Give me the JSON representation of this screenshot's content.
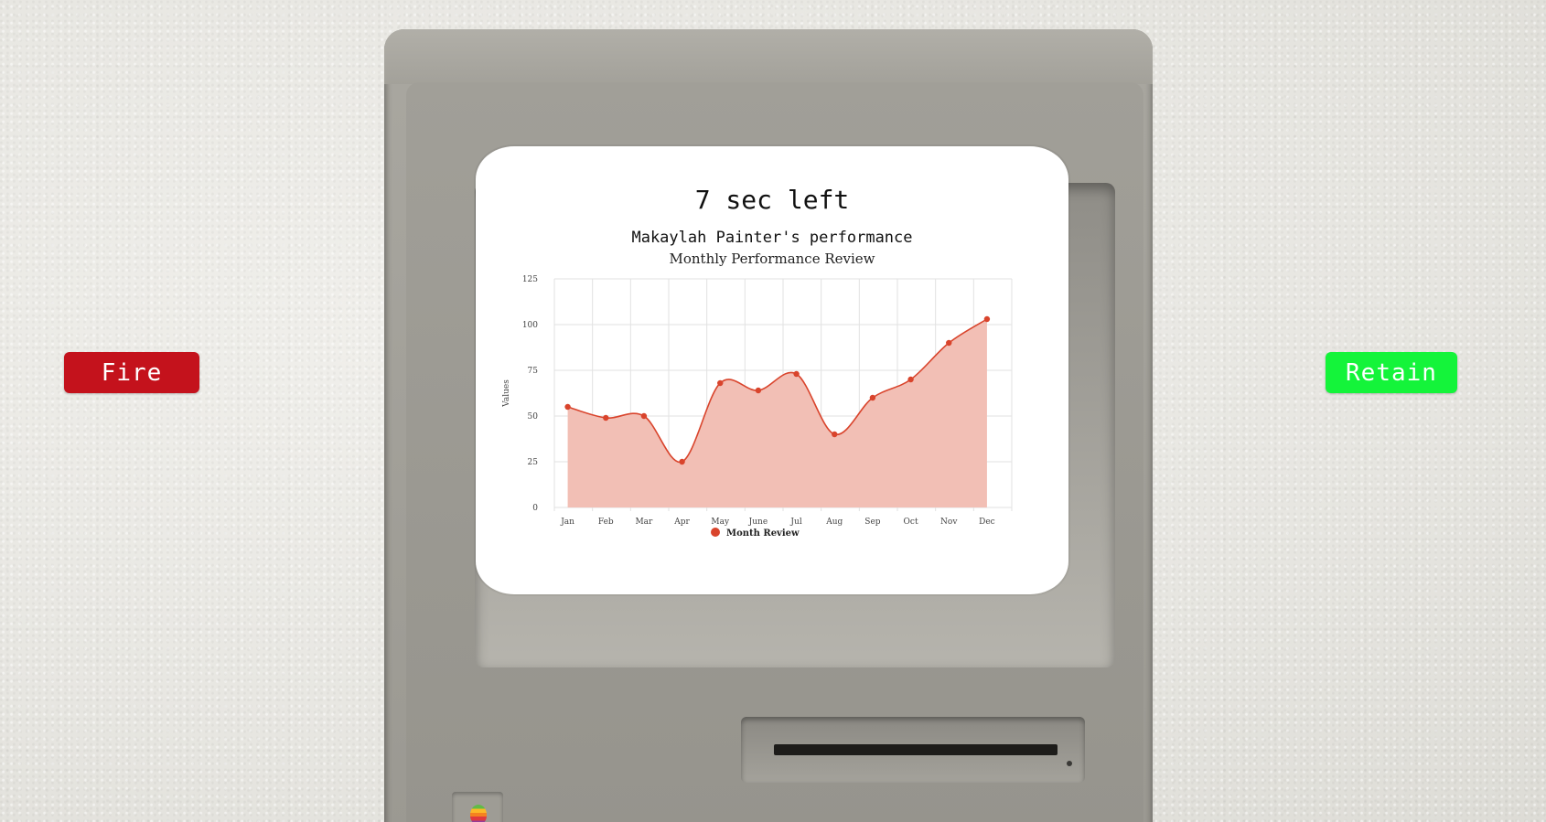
{
  "game": {
    "timer_text": "7 sec left",
    "fire_label": "Fire",
    "retain_label": "Retain",
    "fire_color": "#c4121c",
    "retain_color": "#14f43a"
  },
  "chart_data": {
    "type": "area",
    "title": "Makaylah Painter's performance",
    "subtitle": "Monthly Performance Review",
    "xlabel": "",
    "ylabel": "Values",
    "categories": [
      "Jan",
      "Feb",
      "Mar",
      "Apr",
      "May",
      "June",
      "Jul",
      "Aug",
      "Sep",
      "Oct",
      "Nov",
      "Dec"
    ],
    "series": [
      {
        "name": "Month Review",
        "values": [
          55,
          49,
          50,
          25,
          68,
          64,
          73,
          40,
          60,
          70,
          90,
          103
        ],
        "color": "#d9442c",
        "fill": "#f2bfb5"
      }
    ],
    "ylim": [
      0,
      125
    ],
    "yticks": [
      0,
      25,
      50,
      75,
      100,
      125
    ],
    "grid": true,
    "legend_position": "bottom"
  }
}
